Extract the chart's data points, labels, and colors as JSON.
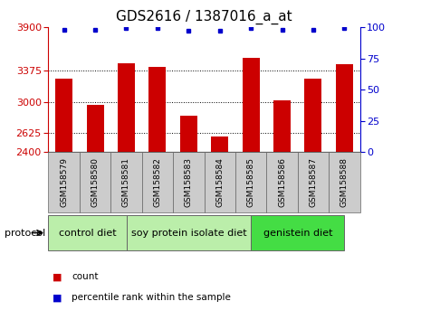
{
  "title": "GDS2616 / 1387016_a_at",
  "samples": [
    "GSM158579",
    "GSM158580",
    "GSM158581",
    "GSM158582",
    "GSM158583",
    "GSM158584",
    "GSM158585",
    "GSM158586",
    "GSM158587",
    "GSM158588"
  ],
  "bar_values": [
    3280,
    2970,
    3470,
    3420,
    2840,
    2590,
    3530,
    3020,
    3280,
    3460
  ],
  "percentile_values": [
    98,
    98,
    99,
    99,
    97,
    97,
    99,
    98,
    98,
    99
  ],
  "bar_color": "#cc0000",
  "dot_color": "#0000cc",
  "ylim_left": [
    2400,
    3900
  ],
  "ylim_right": [
    0,
    100
  ],
  "yticks_left": [
    2400,
    2625,
    3000,
    3375,
    3900
  ],
  "yticks_right": [
    0,
    25,
    50,
    75,
    100
  ],
  "grid_lines": [
    2625,
    3000,
    3375
  ],
  "group_spans": [
    [
      0,
      2.5,
      "control diet",
      "#bbeeaa"
    ],
    [
      2.5,
      6.5,
      "soy protein isolate diet",
      "#bbeeaa"
    ],
    [
      6.5,
      9.5,
      "genistein diet",
      "#44dd44"
    ]
  ],
  "protocol_label": "protocol",
  "legend_count_label": "count",
  "legend_pct_label": "percentile rank within the sample",
  "bg_color": "#ffffff",
  "plot_bg": "#ffffff",
  "tick_label_bg": "#cccccc",
  "group_border_color": "#666666",
  "title_fontsize": 11,
  "tick_fontsize": 8,
  "label_fontsize": 6.5,
  "group_fontsize": 8,
  "legend_fontsize": 7.5
}
